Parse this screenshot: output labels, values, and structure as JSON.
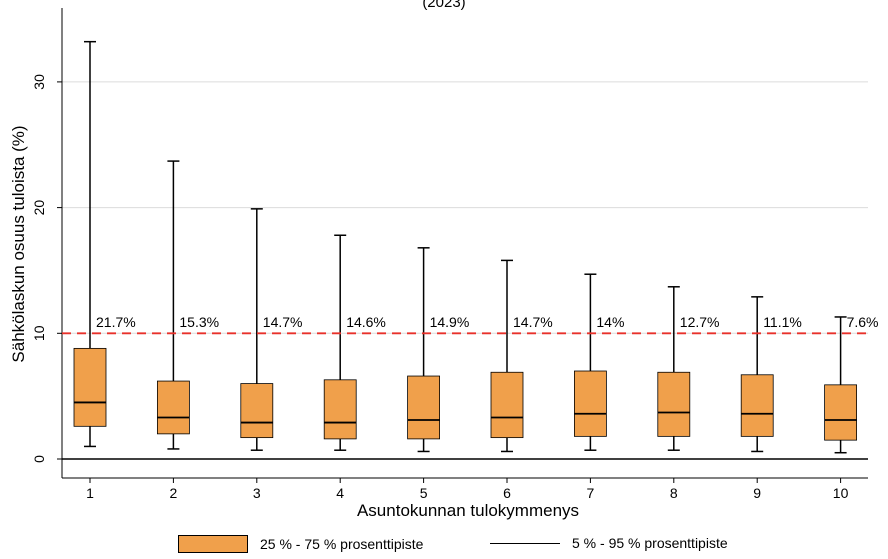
{
  "chart_data": {
    "type": "box",
    "title": "(2023)",
    "xlabel": "Asuntokunnan tulokymmenys",
    "ylabel": "Sähkölaskun osuus tuloista (%)",
    "ylim": [
      -1.5,
      36
    ],
    "yticks": [
      0,
      10,
      20,
      30
    ],
    "grid": true,
    "reference_line": {
      "y": 10,
      "color": "#e8312a",
      "style": "dashed"
    },
    "zero_line": {
      "y": 0
    },
    "box_color": "#f0a04b",
    "categories": [
      "1",
      "2",
      "3",
      "4",
      "5",
      "6",
      "7",
      "8",
      "9",
      "10"
    ],
    "boxes": [
      {
        "p5": 1.0,
        "p25": 2.6,
        "median": 4.5,
        "p75": 8.8,
        "p95": 33.2,
        "label": "21.7%"
      },
      {
        "p5": 0.8,
        "p25": 2.0,
        "median": 3.3,
        "p75": 6.2,
        "p95": 23.7,
        "label": "15.3%"
      },
      {
        "p5": 0.7,
        "p25": 1.7,
        "median": 2.9,
        "p75": 6.0,
        "p95": 19.9,
        "label": "14.7%"
      },
      {
        "p5": 0.7,
        "p25": 1.6,
        "median": 2.9,
        "p75": 6.3,
        "p95": 17.8,
        "label": "14.6%"
      },
      {
        "p5": 0.6,
        "p25": 1.6,
        "median": 3.1,
        "p75": 6.6,
        "p95": 16.8,
        "label": "14.9%"
      },
      {
        "p5": 0.6,
        "p25": 1.7,
        "median": 3.3,
        "p75": 6.9,
        "p95": 15.8,
        "label": "14.7%"
      },
      {
        "p5": 0.7,
        "p25": 1.8,
        "median": 3.6,
        "p75": 7.0,
        "p95": 14.7,
        "label": "14%"
      },
      {
        "p5": 0.7,
        "p25": 1.8,
        "median": 3.7,
        "p75": 6.9,
        "p95": 13.7,
        "label": "12.7%"
      },
      {
        "p5": 0.6,
        "p25": 1.8,
        "median": 3.6,
        "p75": 6.7,
        "p95": 12.9,
        "label": "11.1%"
      },
      {
        "p5": 0.5,
        "p25": 1.5,
        "median": 3.1,
        "p75": 5.9,
        "p95": 11.3,
        "label": "7.6%"
      }
    ],
    "legend": {
      "placement": "bottom",
      "box_label": "25 % - 75 % prosenttipiste",
      "whisker_label": "5 % - 95 % prosenttipiste"
    }
  }
}
